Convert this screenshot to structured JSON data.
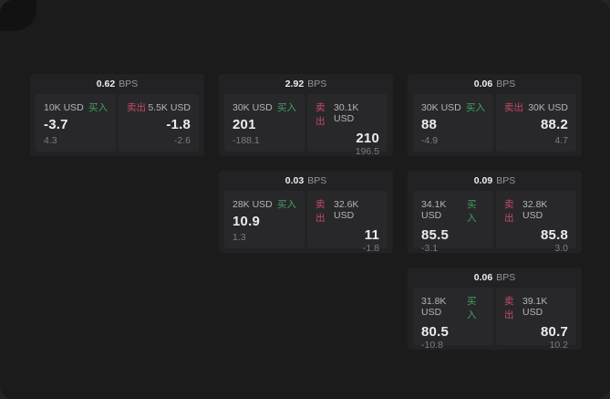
{
  "colors": {
    "outer_bg": "#242427",
    "panel_bg": "#1b1b1c",
    "card_bg": "#222224",
    "tile_bg": "#28282a",
    "buy_green": "#3fa164",
    "sell_red": "#c44a66",
    "primary_text": "#ececed",
    "secondary_text": "#b5b5b9",
    "muted_text": "#7d7d81"
  },
  "labels": {
    "buy": "买入",
    "sell": "卖出",
    "spread_unit": "BPS"
  },
  "cards": [
    {
      "spread": "0.62",
      "unit": "BPS",
      "buy": {
        "size": "10K USD",
        "label": "买入",
        "price": "-3.7",
        "delta": "4.3"
      },
      "sell": {
        "label": "卖出",
        "size": "5.5K USD",
        "price": "-1.8",
        "delta": "-2.6"
      }
    },
    {
      "spread": "2.92",
      "unit": "BPS",
      "buy": {
        "size": "30K USD",
        "label": "买入",
        "price": "201",
        "delta": "-188.1"
      },
      "sell": {
        "label": "卖出",
        "size": "30.1K USD",
        "price": "210",
        "delta": "196.5"
      }
    },
    {
      "spread": "0.06",
      "unit": "BPS",
      "buy": {
        "size": "30K USD",
        "label": "买入",
        "price": "88",
        "delta": "-4.9"
      },
      "sell": {
        "label": "卖出",
        "size": "30K USD",
        "price": "88.2",
        "delta": "4.7"
      }
    },
    {
      "spread": "0.03",
      "unit": "BPS",
      "buy": {
        "size": "28K USD",
        "label": "买入",
        "price": "10.9",
        "delta": "1.3"
      },
      "sell": {
        "label": "卖出",
        "size": "32.6K USD",
        "price": "11",
        "delta": "-1.8"
      }
    },
    {
      "spread": "0.09",
      "unit": "BPS",
      "buy": {
        "size": "34.1K USD",
        "label": "买入",
        "price": "85.5",
        "delta": "-3.1"
      },
      "sell": {
        "label": "卖出",
        "size": "32.8K USD",
        "price": "85.8",
        "delta": "3.0"
      }
    },
    {
      "spread": "0.06",
      "unit": "BPS",
      "buy": {
        "size": "31.8K USD",
        "label": "买入",
        "price": "80.5",
        "delta": "-10.8"
      },
      "sell": {
        "label": "卖出",
        "size": "39.1K USD",
        "price": "80.7",
        "delta": "10.2"
      }
    }
  ]
}
